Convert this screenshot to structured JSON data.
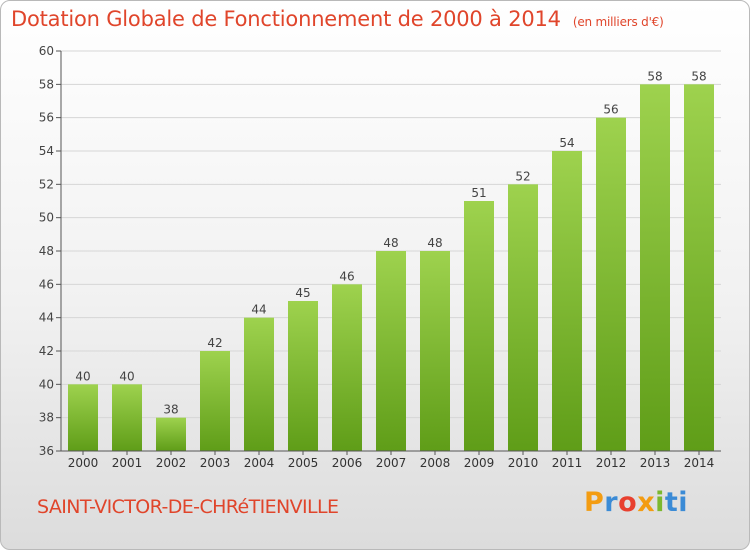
{
  "title": "Dotation Globale de Fonctionnement de 2000 à 2014",
  "subtitle": "(en milliers d'€)",
  "commune": "SAINT-VICTOR-DE-CHRéTIENVILLE",
  "logo": {
    "text": "Proxiti",
    "letters": [
      "P",
      "r",
      "o",
      "x",
      "i",
      "ti"
    ]
  },
  "colors": {
    "title": "#e0452b",
    "bar_light": "#9ed24e",
    "bar_dark": "#5f9d18",
    "axis": "#555555",
    "grid": "#d6d6d6"
  },
  "chart_data": {
    "type": "bar",
    "categories": [
      "2000",
      "2001",
      "2002",
      "2003",
      "2004",
      "2005",
      "2006",
      "2007",
      "2008",
      "2009",
      "2010",
      "2011",
      "2012",
      "2013",
      "2014"
    ],
    "values": [
      40,
      40,
      38,
      42,
      44,
      45,
      46,
      48,
      48,
      51,
      52,
      54,
      56,
      58,
      58
    ],
    "ylim": [
      36,
      60
    ],
    "yticks": [
      36,
      38,
      40,
      42,
      44,
      46,
      48,
      50,
      52,
      54,
      56,
      58,
      60
    ],
    "grid": true,
    "title": "Dotation Globale de Fonctionnement de 2000 à 2014",
    "ylabel": "",
    "xlabel": ""
  }
}
